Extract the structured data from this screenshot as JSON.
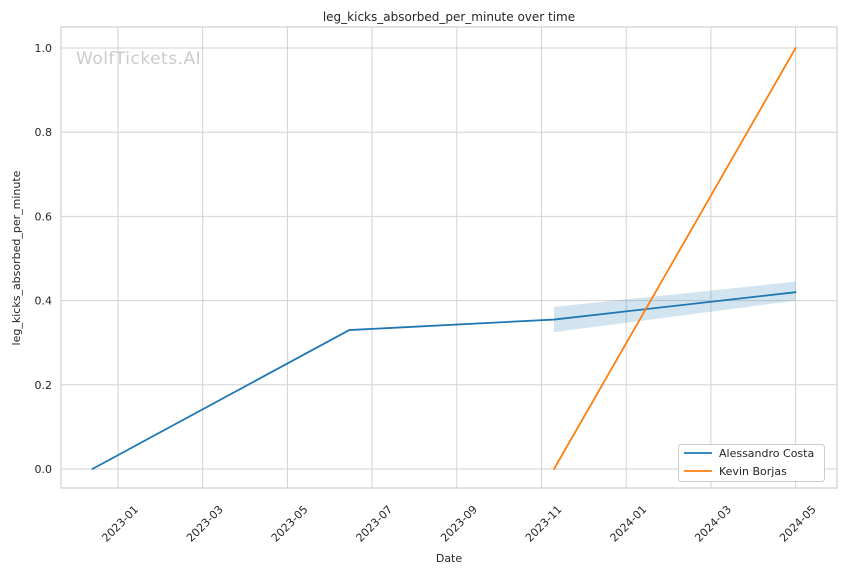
{
  "watermark": "WolfTickets.AI",
  "chart_data": {
    "type": "line",
    "title": "leg_kicks_absorbed_per_minute over time",
    "xlabel": "Date",
    "ylabel": "leg_kicks_absorbed_per_minute",
    "x_tick_labels": [
      "2023-01",
      "2023-03",
      "2023-05",
      "2023-07",
      "2023-09",
      "2023-11",
      "2024-01",
      "2024-03",
      "2024-05"
    ],
    "y_tick_labels": [
      "0.0",
      "0.2",
      "0.4",
      "0.6",
      "0.8",
      "1.0"
    ],
    "ylim": [
      -0.05,
      1.05
    ],
    "grid": true,
    "legend": {
      "position": "lower right"
    },
    "colors": {
      "background": "#ffffff",
      "gridline": "#d2d2d2",
      "tick_text": "#262626",
      "watermark_text": "#cbcbcb"
    },
    "series": [
      {
        "name": "Alessandro Costa",
        "color": "#1f77b4",
        "points": [
          {
            "date": "2022-12-13",
            "value": 0.0
          },
          {
            "date": "2023-06-15",
            "value": 0.33
          },
          {
            "date": "2023-11-10",
            "value": 0.355
          },
          {
            "date": "2024-05-01",
            "value": 0.42
          }
        ],
        "ci_band": [
          {
            "date": "2023-11-10",
            "lower": 0.325,
            "upper": 0.385
          },
          {
            "date": "2024-05-01",
            "lower": 0.4,
            "upper": 0.445
          }
        ]
      },
      {
        "name": "Kevin Borjas",
        "color": "#ff7f0e",
        "points": [
          {
            "date": "2023-11-10",
            "value": 0.0
          },
          {
            "date": "2024-05-01",
            "value": 1.0
          }
        ]
      }
    ]
  }
}
